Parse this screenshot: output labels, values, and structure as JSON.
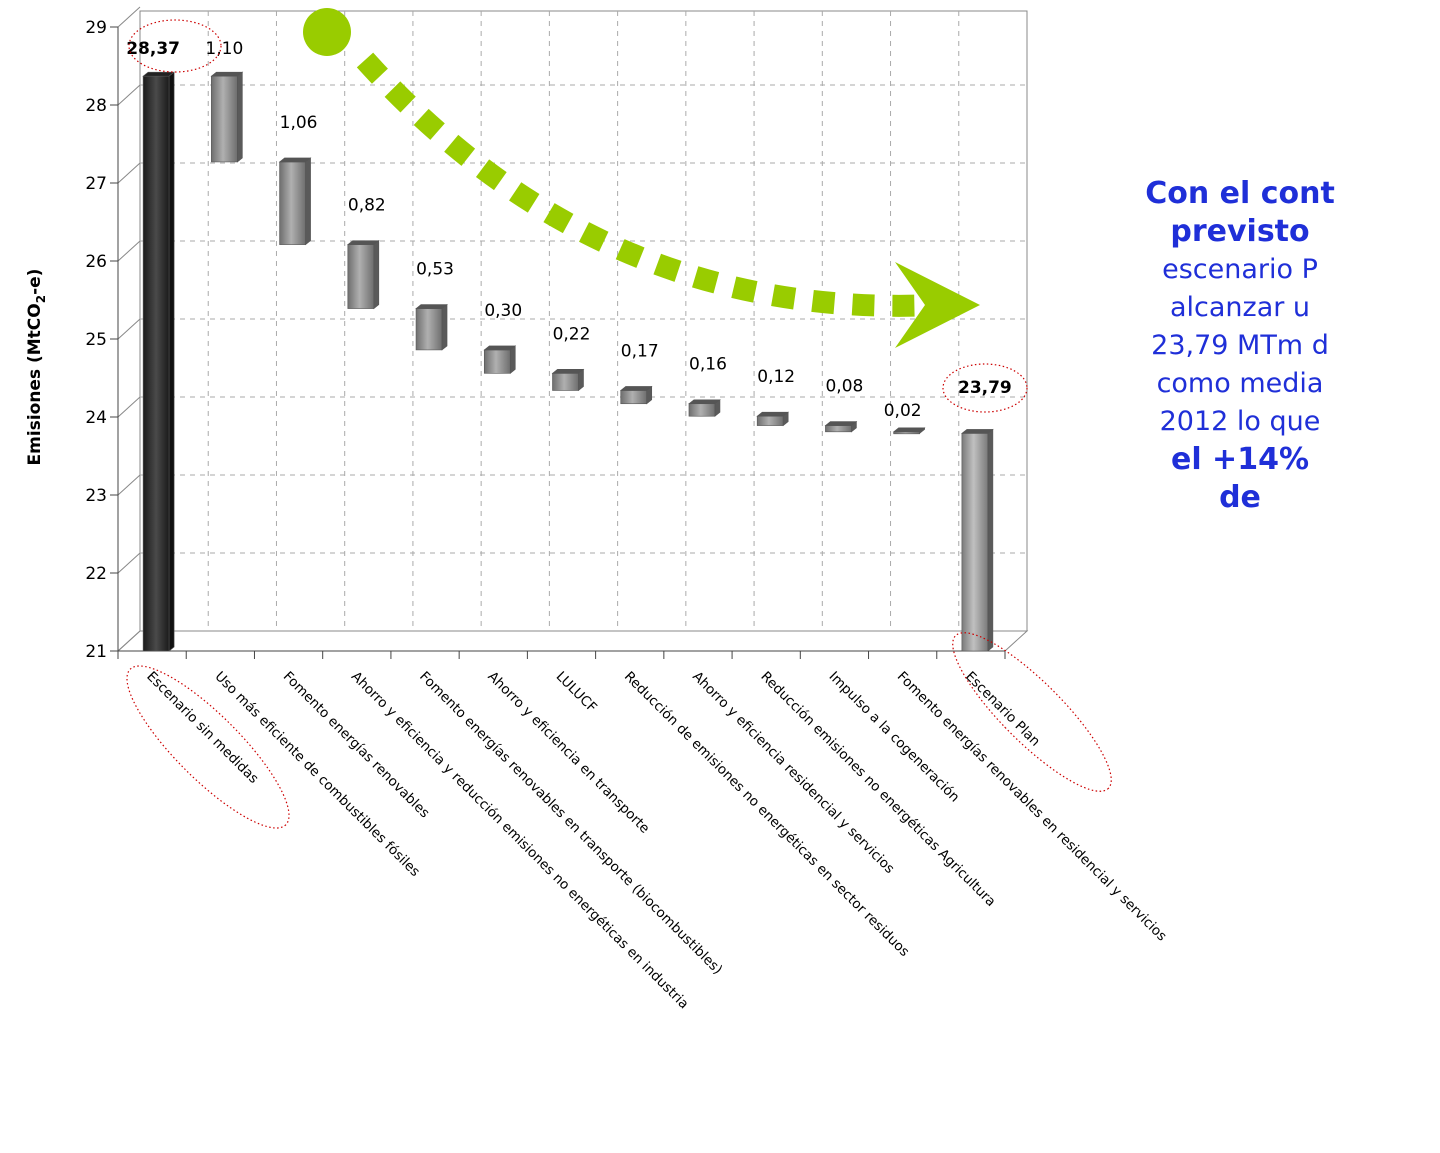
{
  "chart_data": {
    "type": "bar",
    "subtype": "waterfall",
    "ylabel_prefix": "Emisiones (MtCO",
    "ylabel_sub": "2",
    "ylabel_suffix": "-e)",
    "ylim": [
      21,
      29
    ],
    "yticks": [
      "21",
      "22",
      "23",
      "24",
      "25",
      "26",
      "27",
      "28",
      "29"
    ],
    "grid": true,
    "categories": [
      "Escenario sin medidas",
      "Uso más eficiente de combustibles fósiles",
      "Fomento energías renovables",
      "Ahorro y eficiencia y reducción emisiones no energéticas en industria",
      "Fomento energías renovables en transporte (biocombustibles)",
      "Ahorro y eficiencia en transporte",
      "LULUCF",
      "Reducción de emisiones no energéticas en sector residuos",
      "Ahorro y eficiencia residencial y servicios",
      "Reducción emisiones no energéticas Agricultura",
      "Impulso a la cogeneración",
      "Fomento energías renovables en residencial y servicios",
      "Escenario Plan"
    ],
    "values": [
      28.37,
      1.1,
      1.06,
      0.82,
      0.53,
      0.3,
      0.22,
      0.17,
      0.16,
      0.12,
      0.08,
      0.02,
      23.79
    ],
    "value_labels": [
      "28,37",
      "1,10",
      "1,06",
      "0,82",
      "0,53",
      "0,30",
      "0,22",
      "0,17",
      "0,16",
      "0,12",
      "0,08",
      "0,02",
      "23,79"
    ],
    "kinds": [
      "total",
      "delta",
      "delta",
      "delta",
      "delta",
      "delta",
      "delta",
      "delta",
      "delta",
      "delta",
      "delta",
      "delta",
      "total"
    ],
    "colors": {
      "total_start": "#333333",
      "delta": "#8c8c8c",
      "total_end": "#9a9a9a",
      "arrow": "#99cc00",
      "highlight": "#cc0000"
    }
  },
  "note": {
    "line1": "Con el cont",
    "line2": "previsto",
    "line3": "escenario P",
    "line4": "alcanzar u",
    "line5": "23,79 MTm d",
    "line6": "como media",
    "line7": "2012 lo que",
    "line8": "el +14% ",
    "line9": "de",
    "color": "#1f2fd8"
  }
}
